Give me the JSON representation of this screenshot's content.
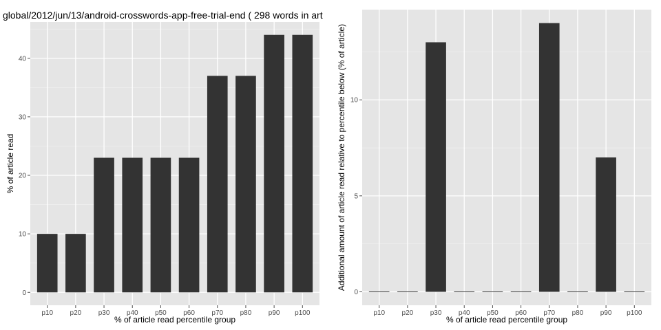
{
  "chart_data": [
    {
      "type": "bar",
      "title": "global/2012/jun/13/android-crosswords-app-free-trial-end ( 298 words in art",
      "xlabel": "% of article read percentile group",
      "ylabel": "% of article read",
      "categories": [
        "p10",
        "p20",
        "p30",
        "p40",
        "p50",
        "p60",
        "p70",
        "p80",
        "p90",
        "p100"
      ],
      "values": [
        10,
        10,
        23,
        23,
        23,
        23,
        37,
        37,
        44,
        44
      ],
      "ylim": [
        -2.2,
        46.2
      ],
      "yticks": [
        0,
        10,
        20,
        30,
        40
      ],
      "grid": true,
      "bar_color": "#333333",
      "panel_color": "#e5e5e5"
    },
    {
      "type": "bar",
      "title": "",
      "xlabel": "% of article read percentile group",
      "ylabel": "Additional amount of article read relative to percentile below (% of article)",
      "categories": [
        "p10",
        "p20",
        "p30",
        "p40",
        "p50",
        "p60",
        "p70",
        "p80",
        "p90",
        "p100"
      ],
      "values": [
        0,
        0,
        13,
        0,
        0,
        0,
        14,
        0,
        7,
        0
      ],
      "ylim": [
        -0.7,
        14.7
      ],
      "yticks": [
        0,
        5,
        10
      ],
      "grid": true,
      "bar_color": "#333333",
      "panel_color": "#e5e5e5"
    }
  ]
}
